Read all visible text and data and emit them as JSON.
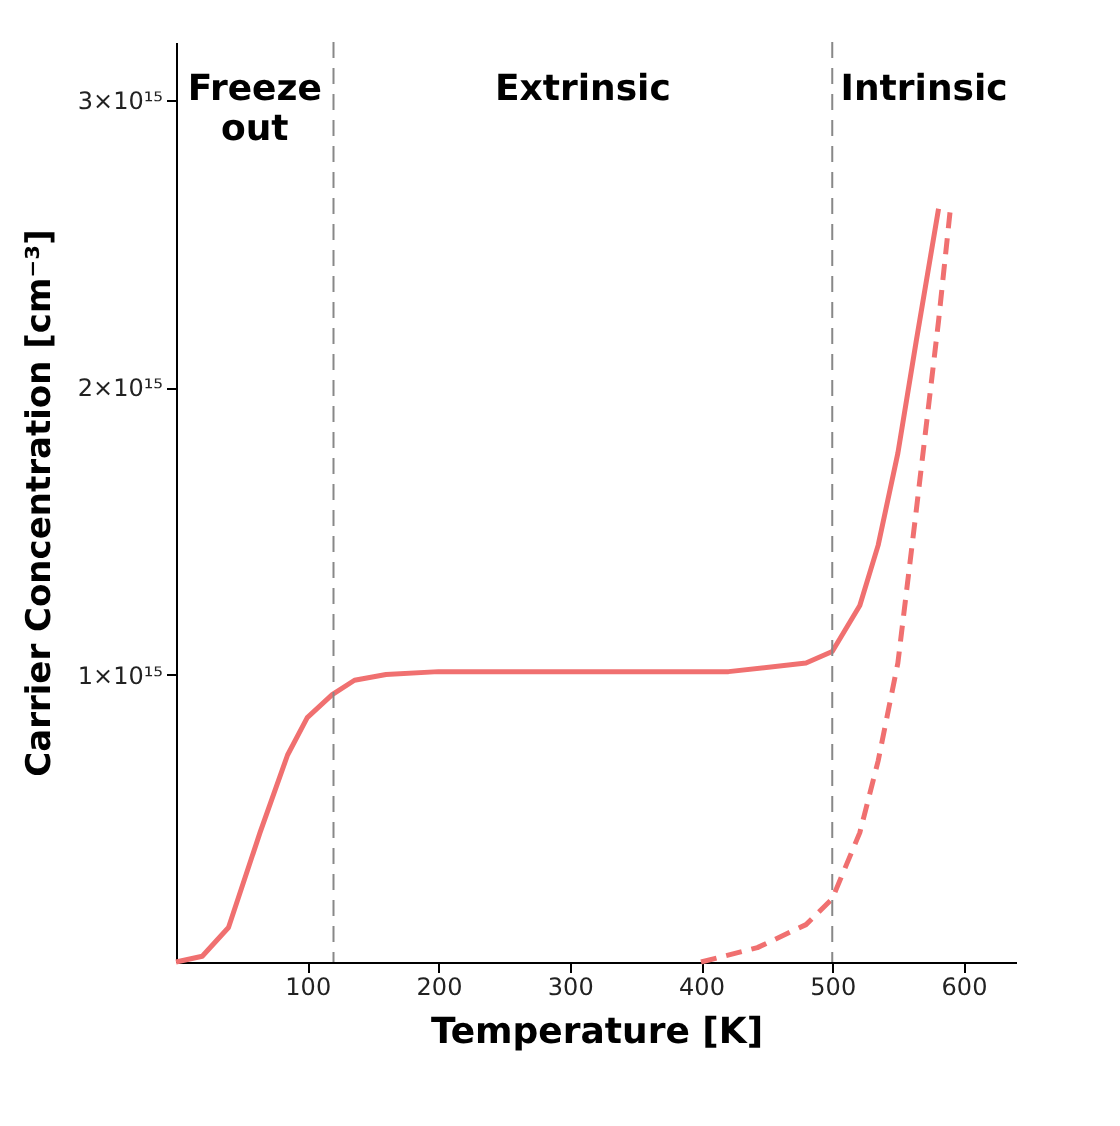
{
  "chart_data": {
    "type": "line",
    "xlabel": "Temperature [K]",
    "ylabel": "Carrier Concentration  [cm⁻³]",
    "xlim": [
      0,
      640
    ],
    "ylim": [
      0,
      3200000000000000.0
    ],
    "xticks": [
      100,
      200,
      300,
      400,
      500,
      600
    ],
    "yticks": [
      {
        "value": 1000000000000000.0,
        "label": "1×10¹⁵"
      },
      {
        "value": 2000000000000000.0,
        "label": "2×10¹⁵"
      },
      {
        "value": 3000000000000000.0,
        "label": "3×10¹⁵"
      }
    ],
    "grid": false,
    "marker": "none",
    "series": [
      {
        "color": "#f07070",
        "line_style": "solid",
        "x": [
          0,
          20,
          40,
          64,
          85,
          100,
          119,
          136,
          160,
          200,
          300,
          421,
          480,
          500,
          521,
          535,
          550,
          564,
          581
        ],
        "values": [
          0,
          20000000000000.0,
          120000000000000.0,
          450000000000000.0,
          720000000000000.0,
          850000000000000.0,
          930000000000000.0,
          980000000000000.0,
          1000000000000000.0,
          1010000000000000.0,
          1010000000000000.0,
          1010000000000000.0,
          1040000000000000.0,
          1080000000000000.0,
          1240000000000000.0,
          1450000000000000.0,
          1770000000000000.0,
          2160000000000000.0,
          2620000000000000.0
        ]
      },
      {
        "color": "#f07070",
        "line_style": "dashed",
        "x": [
          400,
          443,
          480,
          500,
          521,
          535,
          550,
          564,
          581,
          590
        ],
        "values": [
          0,
          50000000000000.0,
          130000000000000.0,
          220000000000000.0,
          450000000000000.0,
          700000000000000.0,
          1040000000000000.0,
          1570000000000000.0,
          2230000000000000.0,
          2620000000000000.0
        ]
      }
    ],
    "ref_lines": [
      {
        "axis": "x",
        "value": 120,
        "color": "#888888",
        "line_style": "dashed"
      },
      {
        "axis": "x",
        "value": 500,
        "color": "#888888",
        "line_style": "dashed"
      }
    ],
    "annotations": [
      "Freeze\nout",
      "Extrinsic",
      "Intrinsic"
    ]
  }
}
